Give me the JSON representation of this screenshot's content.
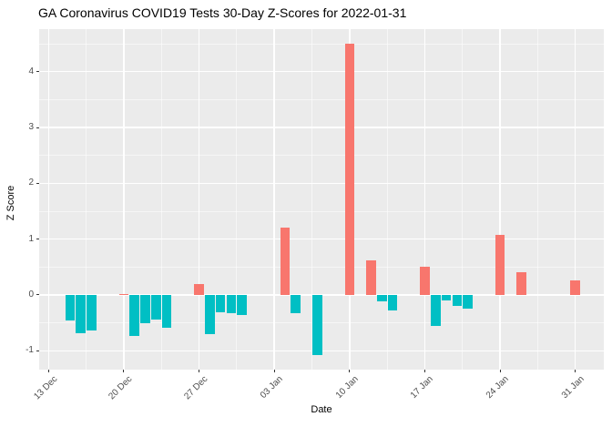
{
  "chart_data": {
    "type": "bar",
    "title": "GA Coronavirus COVID19 Tests 30-Day Z-Scores for 2022-01-31",
    "xlabel": "Date",
    "ylabel": "Z Score",
    "legend": "none",
    "grid": "on",
    "x_ticks": [
      {
        "day": 0,
        "label": "13 Dec"
      },
      {
        "day": 7,
        "label": "20 Dec"
      },
      {
        "day": 14,
        "label": "27 Dec"
      },
      {
        "day": 21,
        "label": "03 Jan"
      },
      {
        "day": 28,
        "label": "10 Jan"
      },
      {
        "day": 35,
        "label": "17 Jan"
      },
      {
        "day": 42,
        "label": "24 Jan"
      },
      {
        "day": 49,
        "label": "31 Jan"
      }
    ],
    "x_minor_days": [
      3.5,
      10.5,
      17.5,
      24.5,
      31.5,
      38.5,
      45.5
    ],
    "y_ticks": [
      {
        "v": -1,
        "label": "-1"
      },
      {
        "v": 0,
        "label": "0"
      },
      {
        "v": 1,
        "label": "1"
      },
      {
        "v": 2,
        "label": "2"
      },
      {
        "v": 3,
        "label": "3"
      },
      {
        "v": 4,
        "label": "4"
      }
    ],
    "y_minor": [
      -0.5,
      0.5,
      1.5,
      2.5,
      3.5,
      4.5
    ],
    "xlim_days": [
      -0.873,
      51.652
    ],
    "ylim": [
      -1.337,
      4.761
    ],
    "bar_width_days": 0.9,
    "bars": [
      {
        "date": "15 Dec",
        "day": 2,
        "z": -0.45
      },
      {
        "date": "16 Dec",
        "day": 3,
        "z": -0.68
      },
      {
        "date": "17 Dec",
        "day": 4,
        "z": -0.63
      },
      {
        "date": "20 Dec",
        "day": 7,
        "z": 0.02
      },
      {
        "date": "21 Dec",
        "day": 8,
        "z": -0.73
      },
      {
        "date": "22 Dec",
        "day": 9,
        "z": -0.5
      },
      {
        "date": "23 Dec",
        "day": 10,
        "z": -0.44
      },
      {
        "date": "24 Dec",
        "day": 11,
        "z": -0.59
      },
      {
        "date": "27 Dec",
        "day": 14,
        "z": 0.2
      },
      {
        "date": "28 Dec",
        "day": 15,
        "z": -0.7
      },
      {
        "date": "29 Dec",
        "day": 16,
        "z": -0.31
      },
      {
        "date": "30 Dec",
        "day": 17,
        "z": -0.32
      },
      {
        "date": "31 Dec",
        "day": 18,
        "z": -0.36
      },
      {
        "date": "04 Jan",
        "day": 22,
        "z": 1.2
      },
      {
        "date": "05 Jan",
        "day": 23,
        "z": -0.33
      },
      {
        "date": "07 Jan",
        "day": 25,
        "z": -1.07
      },
      {
        "date": "10 Jan",
        "day": 28,
        "z": 4.5
      },
      {
        "date": "12 Jan",
        "day": 30,
        "z": 0.62
      },
      {
        "date": "13 Jan",
        "day": 31,
        "z": -0.11
      },
      {
        "date": "14 Jan",
        "day": 32,
        "z": -0.27
      },
      {
        "date": "17 Jan",
        "day": 35,
        "z": 0.5
      },
      {
        "date": "18 Jan",
        "day": 36,
        "z": -0.56
      },
      {
        "date": "19 Jan",
        "day": 37,
        "z": -0.1
      },
      {
        "date": "20 Jan",
        "day": 38,
        "z": -0.19
      },
      {
        "date": "21 Jan",
        "day": 39,
        "z": -0.24
      },
      {
        "date": "24 Jan",
        "day": 42,
        "z": 1.07
      },
      {
        "date": "26 Jan",
        "day": 44,
        "z": 0.41
      },
      {
        "date": "31 Jan",
        "day": 49,
        "z": 0.26
      }
    ],
    "colors": {
      "positive": "#F8766D",
      "negative": "#00BFC4",
      "panel_bg": "#EBEBEB",
      "grid": "#FFFFFF",
      "axis_text": "#4D4D4D",
      "tick_mark": "#333333",
      "title_text": "#000000"
    }
  }
}
